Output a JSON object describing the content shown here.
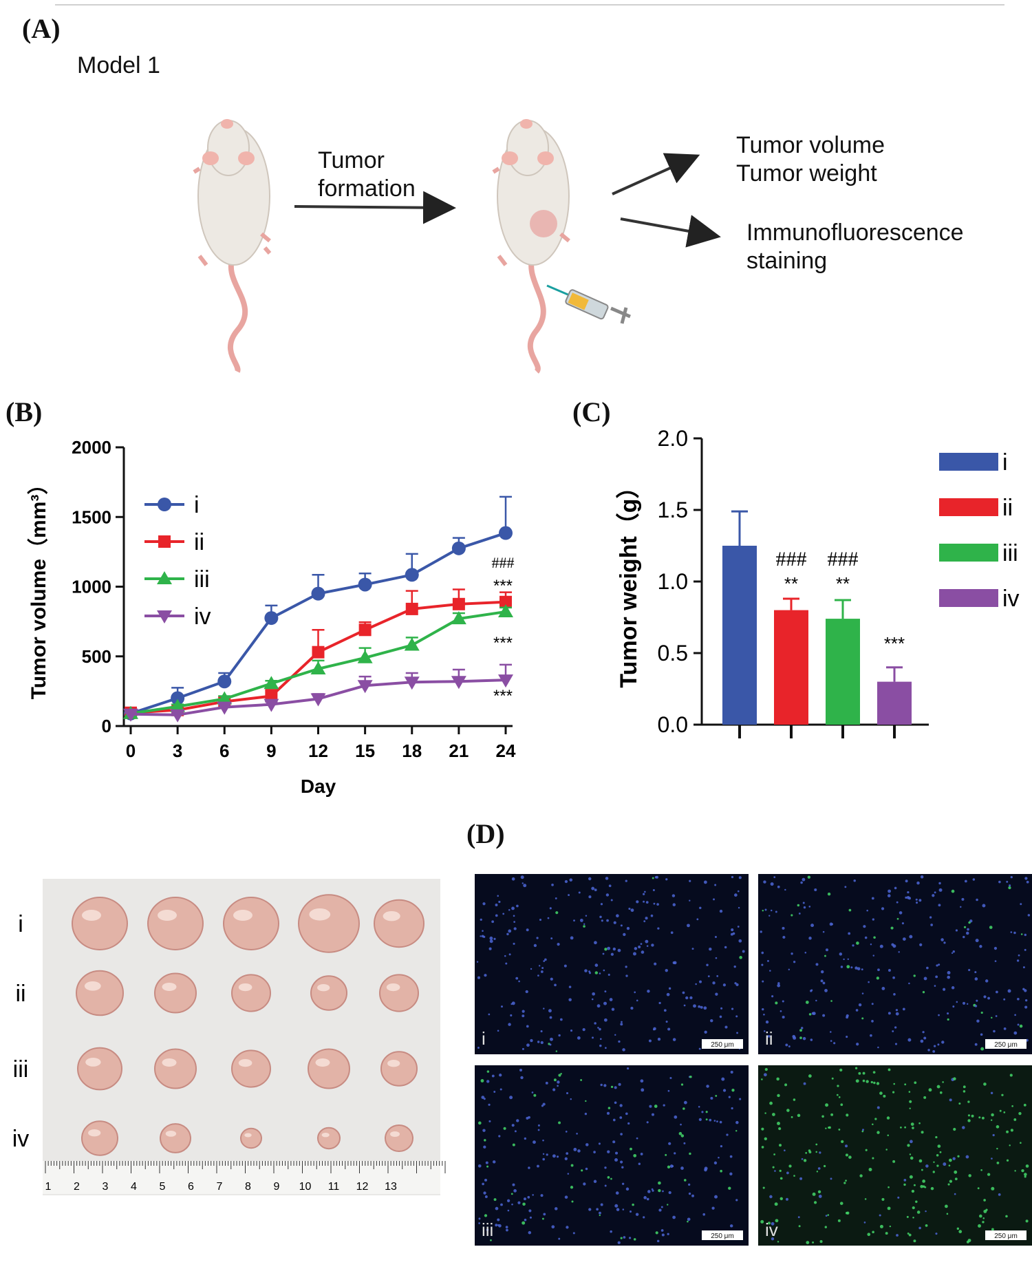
{
  "panels": {
    "a": "(A)",
    "b": "(B)",
    "c": "(C)",
    "d": "(D)"
  },
  "schematic": {
    "model_label": "Model 1",
    "arrow_label_line1": "Tumor",
    "arrow_label_line2": "formation",
    "outcome1_line1": "Tumor volume",
    "outcome1_line2": "Tumor weight",
    "outcome2_line1": "Immunofluorescence",
    "outcome2_line2": "staining"
  },
  "colors": {
    "i": "#3a57a8",
    "ii": "#e8242a",
    "iii": "#2fb34a",
    "iv": "#8a4ea3"
  },
  "chart_data": [
    {
      "type": "line",
      "ylabel": "Tumor volume（mm³）",
      "xlabel": "Day",
      "x": [
        0,
        3,
        6,
        9,
        12,
        15,
        18,
        21,
        24
      ],
      "ylim": [
        0,
        2000
      ],
      "yticks": [
        0,
        500,
        1000,
        1500,
        2000
      ],
      "series": [
        {
          "name": "i",
          "marker": "circle",
          "values": [
            90,
            200,
            320,
            775,
            950,
            1015,
            1085,
            1275,
            1385
          ],
          "err": [
            10,
            75,
            60,
            90,
            135,
            80,
            150,
            75,
            260
          ]
        },
        {
          "name": "ii",
          "marker": "square",
          "values": [
            95,
            115,
            175,
            215,
            530,
            690,
            840,
            875,
            890
          ],
          "err": [
            10,
            20,
            30,
            45,
            160,
            55,
            130,
            105,
            70
          ]
        },
        {
          "name": "iii",
          "marker": "triangle-up",
          "values": [
            90,
            140,
            195,
            305,
            410,
            490,
            580,
            770,
            820
          ],
          "err": [
            10,
            15,
            20,
            20,
            60,
            70,
            55,
            40,
            30
          ]
        },
        {
          "name": "iv",
          "marker": "triangle-down",
          "values": [
            85,
            80,
            135,
            155,
            195,
            290,
            315,
            320,
            330
          ],
          "err": [
            8,
            10,
            25,
            20,
            35,
            65,
            65,
            85,
            110
          ]
        }
      ],
      "legend_position": "top-left",
      "annotations": [
        {
          "series": "ii",
          "text1": "###",
          "text2": "***"
        },
        {
          "series": "iii",
          "text1": "***"
        },
        {
          "series": "iv",
          "text1": "***"
        }
      ]
    },
    {
      "type": "bar",
      "ylabel": "Tumor weight（g）",
      "categories": [
        "i",
        "ii",
        "iii",
        "iv"
      ],
      "values": [
        1.25,
        0.8,
        0.74,
        0.3
      ],
      "err": [
        0.24,
        0.08,
        0.13,
        0.1
      ],
      "ylim": [
        0,
        2.0
      ],
      "yticks": [
        "0.0",
        "0.5",
        "1.0",
        "1.5",
        "2.0"
      ],
      "annotations": [
        {
          "category": "ii",
          "text1": "###",
          "text2": "**"
        },
        {
          "category": "iii",
          "text1": "###",
          "text2": "**"
        },
        {
          "category": "iv",
          "text1": "***"
        }
      ],
      "legend_position": "right"
    }
  ],
  "photo": {
    "rows": [
      "i",
      "ii",
      "iii",
      "iv"
    ],
    "ruler_numbers": [
      "1",
      "2",
      "3",
      "4",
      "5",
      "6",
      "7",
      "8",
      "9",
      "10",
      "11",
      "12",
      "13"
    ]
  },
  "fluorescence": {
    "panels": [
      "i",
      "ii",
      "iii",
      "iv"
    ],
    "scale_label": "250 μm"
  }
}
